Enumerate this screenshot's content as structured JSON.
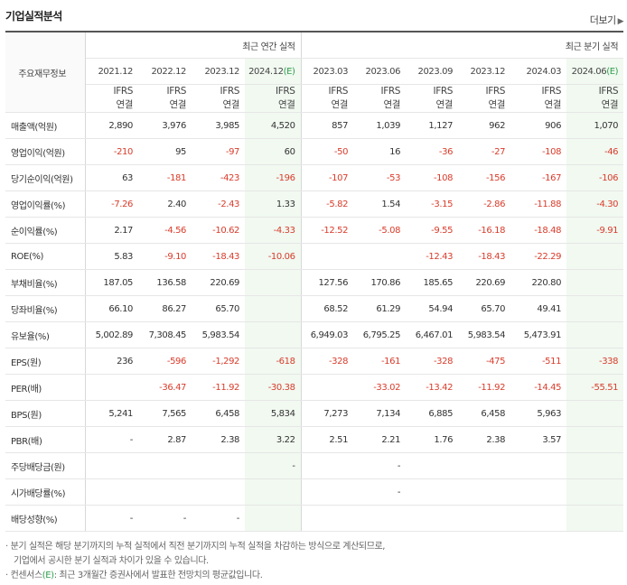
{
  "title": "기업실적분석",
  "more_label": "더보기",
  "corner_label": "주요재무정보",
  "groups": {
    "annual": "최근 연간 실적",
    "quarterly": "최근 분기 실적"
  },
  "periods": [
    "2021.12",
    "2022.12",
    "2023.12",
    "2024.12",
    "2023.03",
    "2023.06",
    "2023.09",
    "2023.12",
    "2024.03",
    "2024.06"
  ],
  "estimate_mark": "(E)",
  "ifrs_line1": "IFRS",
  "ifrs_line2": "연결",
  "rows": [
    {
      "label": "매출액(억원)",
      "values": [
        "2,890",
        "3,976",
        "3,985",
        "4,520",
        "857",
        "1,039",
        "1,127",
        "962",
        "906",
        "1,070"
      ]
    },
    {
      "label": "영업이익(억원)",
      "values": [
        "-210",
        "95",
        "-97",
        "60",
        "-50",
        "16",
        "-36",
        "-27",
        "-108",
        "-46"
      ]
    },
    {
      "label": "당기순이익(억원)",
      "values": [
        "63",
        "-181",
        "-423",
        "-196",
        "-107",
        "-53",
        "-108",
        "-156",
        "-167",
        "-106"
      ]
    },
    {
      "label": "영업이익률(%)",
      "values": [
        "-7.26",
        "2.40",
        "-2.43",
        "1.33",
        "-5.82",
        "1.54",
        "-3.15",
        "-2.86",
        "-11.88",
        "-4.30"
      ]
    },
    {
      "label": "순이익률(%)",
      "values": [
        "2.17",
        "-4.56",
        "-10.62",
        "-4.33",
        "-12.52",
        "-5.08",
        "-9.55",
        "-16.18",
        "-18.48",
        "-9.91"
      ]
    },
    {
      "label": "ROE(%)",
      "values": [
        "5.83",
        "-9.10",
        "-18.43",
        "-10.06",
        "",
        "",
        "-12.43",
        "-18.43",
        "-22.29",
        ""
      ]
    },
    {
      "label": "부채비율(%)",
      "values": [
        "187.05",
        "136.58",
        "220.69",
        "",
        "127.56",
        "170.86",
        "185.65",
        "220.69",
        "220.80",
        ""
      ]
    },
    {
      "label": "당좌비율(%)",
      "values": [
        "66.10",
        "86.27",
        "65.70",
        "",
        "68.52",
        "61.29",
        "54.94",
        "65.70",
        "49.41",
        ""
      ]
    },
    {
      "label": "유보율(%)",
      "values": [
        "5,002.89",
        "7,308.45",
        "5,983.54",
        "",
        "6,949.03",
        "6,795.25",
        "6,467.01",
        "5,983.54",
        "5,473.91",
        ""
      ]
    },
    {
      "label": "EPS(원)",
      "values": [
        "236",
        "-596",
        "-1,292",
        "-618",
        "-328",
        "-161",
        "-328",
        "-475",
        "-511",
        "-338"
      ]
    },
    {
      "label": "PER(배)",
      "values": [
        "",
        "-36.47",
        "-11.92",
        "-30.38",
        "",
        "-33.02",
        "-13.42",
        "-11.92",
        "-14.45",
        "-55.51"
      ]
    },
    {
      "label": "BPS(원)",
      "values": [
        "5,241",
        "7,565",
        "6,458",
        "5,834",
        "7,273",
        "7,134",
        "6,885",
        "6,458",
        "5,963",
        ""
      ]
    },
    {
      "label": "PBR(배)",
      "values": [
        "-",
        "2.87",
        "2.38",
        "3.22",
        "2.51",
        "2.21",
        "1.76",
        "2.38",
        "3.57",
        ""
      ]
    },
    {
      "label": "주당배당금(원)",
      "values": [
        "",
        "",
        "",
        "-",
        "",
        "-",
        "",
        "",
        "",
        ""
      ]
    },
    {
      "label": "시가배당률(%)",
      "values": [
        "",
        "",
        "",
        "",
        "",
        "-",
        "",
        "",
        "",
        ""
      ]
    },
    {
      "label": "배당성향(%)",
      "values": [
        "-",
        "-",
        "-",
        "",
        "",
        "",
        "",
        "",
        "",
        ""
      ]
    }
  ],
  "group_end_rows": [
    2,
    4,
    5,
    8,
    12
  ],
  "notes": {
    "line1": "분기 실적은 해당 분기까지의 누적 실적에서 직전 분기까지의 누적 실적을 차감하는 방식으로 계산되므로,",
    "line2": "기업에서 공시한 분기 실적과 차이가 있을 수 있습니다.",
    "line3_prefix": "컨센서스",
    "line3_mark": "(E)",
    "line3_rest": ": 최근 3개월간 증권사에서 발표한 전망치의 평균값입니다."
  }
}
